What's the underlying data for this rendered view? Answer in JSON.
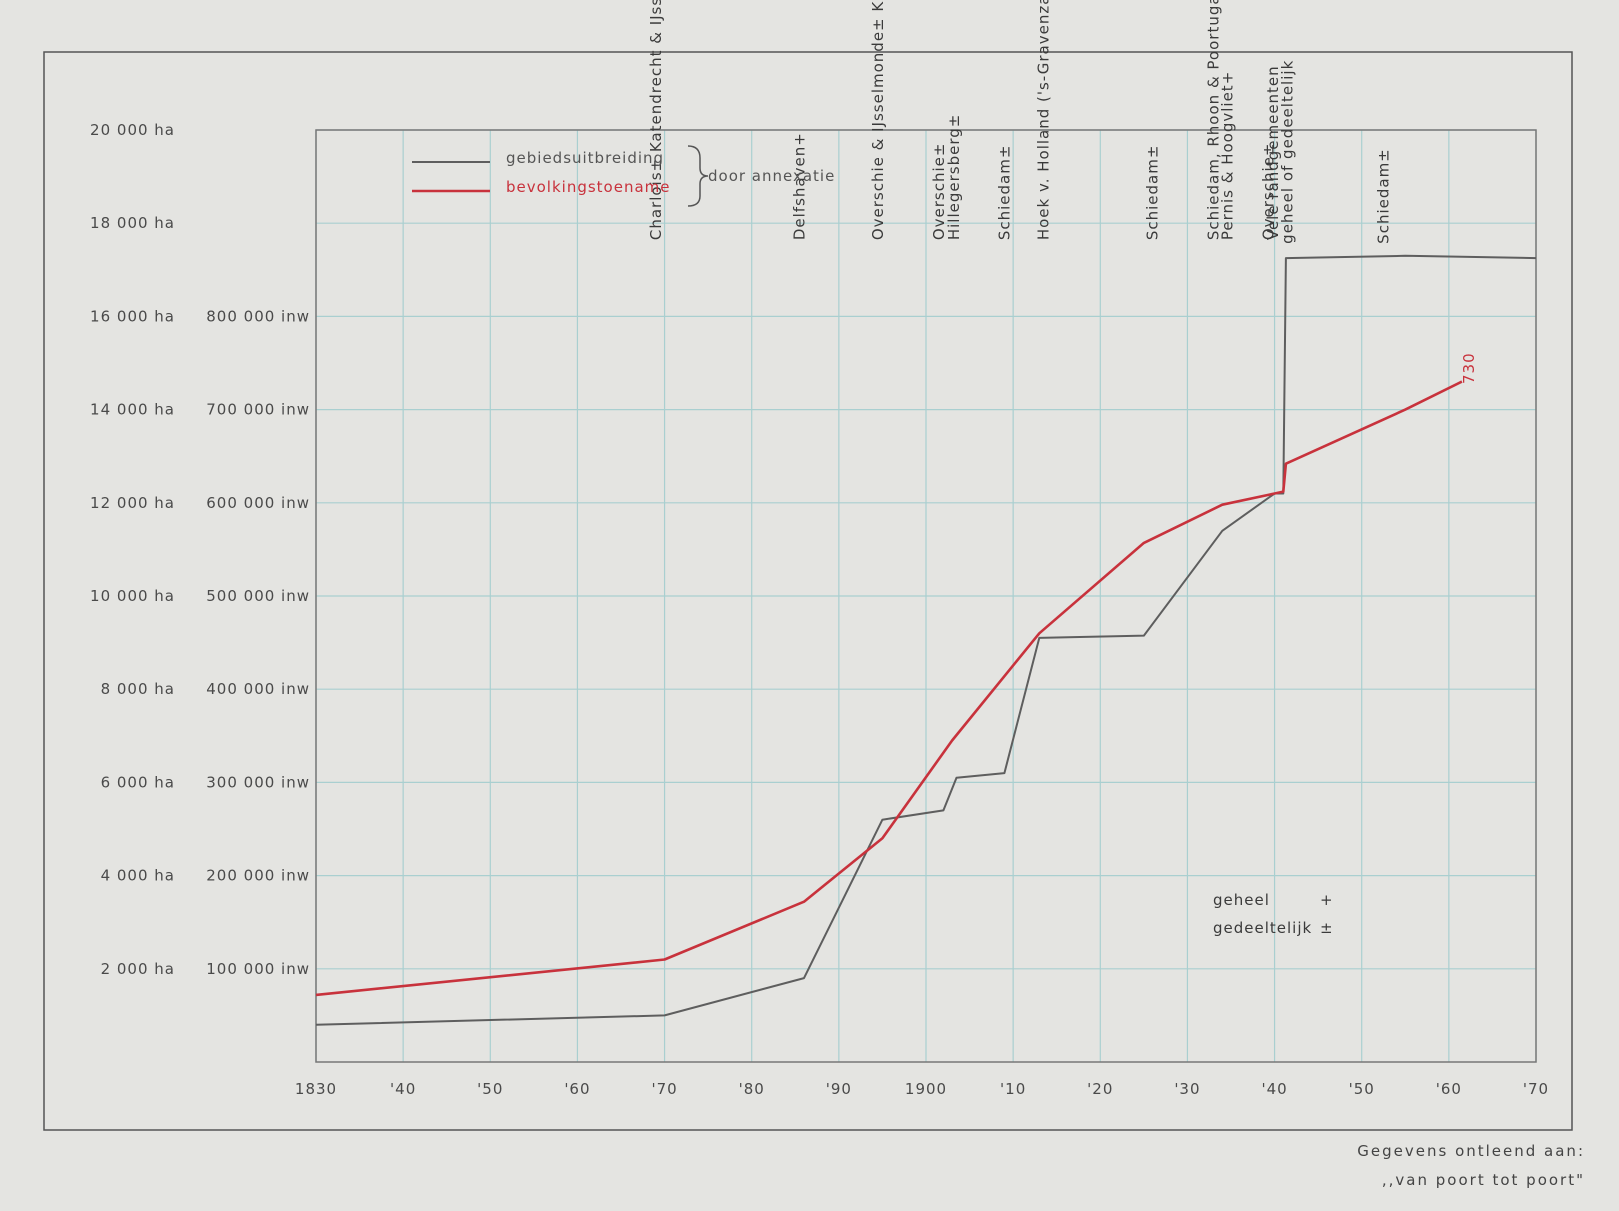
{
  "chart_data": {
    "type": "line",
    "xlabel": "",
    "ylabel": "",
    "x_ticks": [
      "1830",
      "'40",
      "'50",
      "'60",
      "'70",
      "'80",
      "'90",
      "1900",
      "'10",
      "'20",
      "'30",
      "'40",
      "'50",
      "'60",
      "'70"
    ],
    "xlim": [
      1830,
      1970
    ],
    "y_left_ticks": [
      "2 000 ha",
      "4 000 ha",
      "6 000 ha",
      "8 000 ha",
      "10 000 ha",
      "12 000 ha",
      "14 000 ha",
      "16 000 ha",
      "18 000 ha",
      "20 000 ha"
    ],
    "y_left_lim": [
      0,
      20000
    ],
    "y_right_ticks": [
      "100 000 inw",
      "200 000 inw",
      "300 000 inw",
      "400 000 inw",
      "500 000 inw",
      "600 000 inw",
      "700 000 inw",
      "800 000 inw"
    ],
    "y_right_lim": [
      0,
      1000000
    ],
    "grid": true,
    "legend_placement": "top-left",
    "legend": {
      "area_label": "gebiedsuitbreiding",
      "population_label": "bevolkingstoename",
      "group_label": "door annexatie"
    },
    "series": [
      {
        "name": "gebiedsuitbreiding",
        "color": "#5e5e5e",
        "axis": "ha",
        "x": [
          1830,
          1870,
          1886,
          1895,
          1902,
          1903.5,
          1909,
          1913,
          1925,
          1934,
          1940,
          1941,
          1941.3,
          1955,
          1970
        ],
        "y": [
          800,
          1000,
          1800,
          5200,
          5400,
          6100,
          6200,
          9100,
          9150,
          11400,
          12200,
          12200,
          17250,
          17300,
          17250
        ]
      },
      {
        "name": "bevolkingstoename",
        "color": "#c8323c",
        "axis": "inw",
        "x": [
          1830,
          1870,
          1886,
          1895,
          1903,
          1909,
          1913,
          1925,
          1934,
          1940,
          1941,
          1941.3,
          1955,
          1961.5
        ],
        "y": [
          72000,
          110000,
          172000,
          240000,
          345000,
          414000,
          460000,
          557000,
          598000,
          610000,
          612000,
          642000,
          700000,
          730000
        ]
      }
    ],
    "end_label": "730",
    "event_labels": [
      {
        "x": 1869,
        "text": "Charlois±   Katendrecht & IJsselmonde±"
      },
      {
        "x": 1885.5,
        "text": "Delfshaven+"
      },
      {
        "x": 1894.5,
        "text": "Overschie & IJsselmonde±   Kralingen & Charlois+"
      },
      {
        "x": 1901.5,
        "text": "Overschie±"
      },
      {
        "x": 1903.2,
        "text": "Hillegersberg±"
      },
      {
        "x": 1909,
        "text": "Schiedam±"
      },
      {
        "x": 1913.5,
        "text": "Hoek v. Holland ('s-Gravenzande & Naaldwijk±)"
      },
      {
        "x": 1926,
        "text": "Schiedam±"
      },
      {
        "x": 1933,
        "text": "Schiedam, Rhoon & Poortugaal±"
      },
      {
        "x": 1934.6,
        "text": "Pernis & Hoogvliet+"
      },
      {
        "x": 1939.3,
        "text": "Overschie±"
      },
      {
        "x": 1939.8,
        "text": "Vele randgemeenten"
      },
      {
        "x": 1941.5,
        "text": "geheel of gedeeltelijk"
      },
      {
        "x": 1952.5,
        "text": "Schiedam±"
      }
    ],
    "key": {
      "whole_label": "geheel",
      "whole_mark": "+",
      "partial_label": "gedeeltelijk",
      "partial_mark": "±"
    }
  },
  "source": {
    "line1": "Gegevens ontleend aan:",
    "line2": ",,van poort tot poort\""
  },
  "colors": {
    "grid": "#a9cfd0",
    "frame": "#555555",
    "background": "#e4e4e1"
  }
}
